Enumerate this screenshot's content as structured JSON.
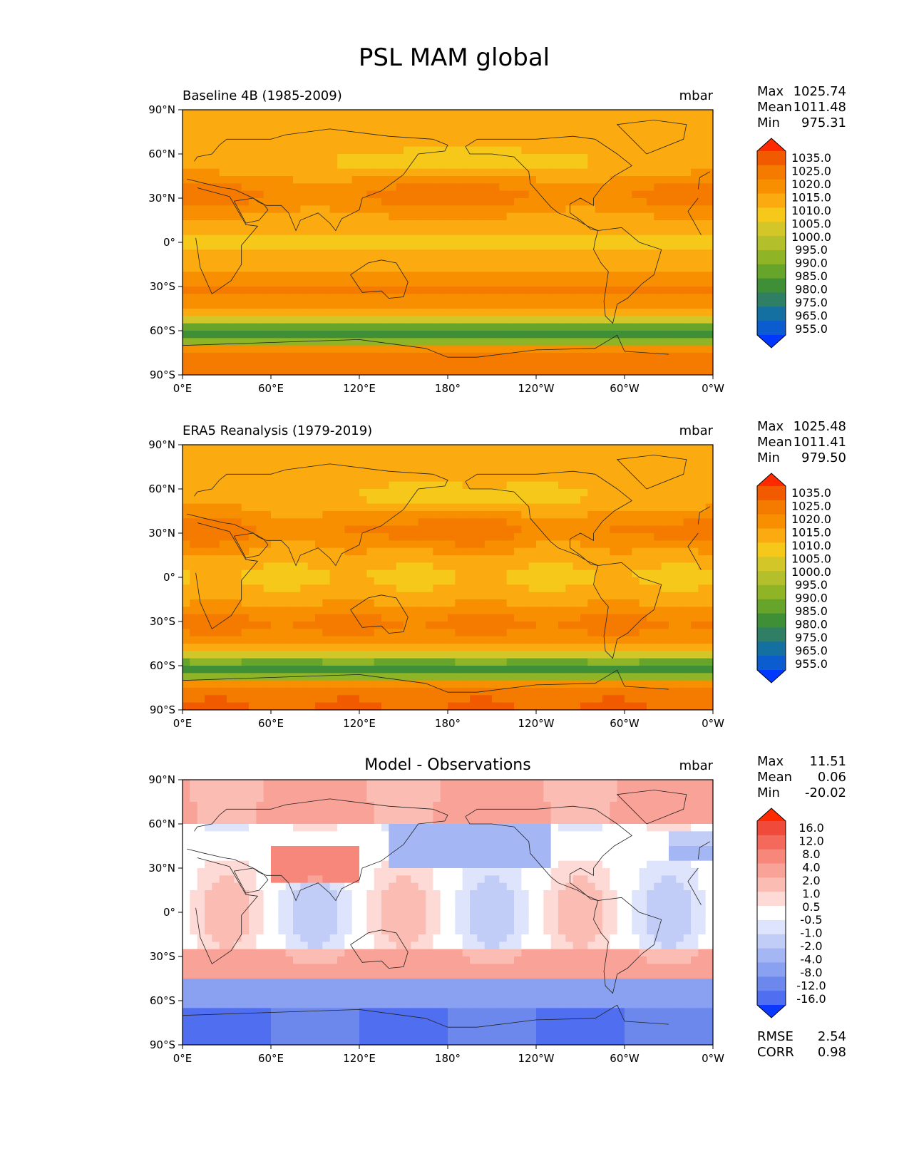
{
  "title": "PSL MAM global",
  "chart_data": [
    {
      "type": "heatmap",
      "title": "Baseline 4B (1985-2009)",
      "units": "mbar",
      "stats": {
        "max_label": "Max",
        "max": "1025.74",
        "mean_label": "Mean",
        "mean": "1011.48",
        "min_label": "Min",
        "min": "975.31"
      },
      "xticks": [
        "0°E",
        "60°E",
        "120°E",
        "180°",
        "120°W",
        "60°W",
        "0°W"
      ],
      "yticks": [
        "90°N",
        "60°N",
        "30°N",
        "0°",
        "30°S",
        "60°S",
        "90°S"
      ],
      "xlim": [
        0,
        360
      ],
      "ylim": [
        -90,
        90
      ],
      "colorbar": {
        "levels": [
          "1035.0",
          "1025.0",
          "1020.0",
          "1015.0",
          "1010.0",
          "1005.0",
          "1000.0",
          "995.0",
          "990.0",
          "985.0",
          "980.0",
          "975.0",
          "965.0",
          "955.0"
        ],
        "colors": [
          "#ff2a00",
          "#f25a00",
          "#f57a00",
          "#f78f00",
          "#fbaa10",
          "#f5c81a",
          "#d2c628",
          "#b3c02c",
          "#8fb526",
          "#66a52a",
          "#3f8f37",
          "#2f7f65",
          "#1470a0",
          "#0a5ccf",
          "#0038ff"
        ]
      }
    },
    {
      "type": "heatmap",
      "title": "ERA5 Reanalysis (1979-2019)",
      "units": "mbar",
      "stats": {
        "max_label": "Max",
        "max": "1025.48",
        "mean_label": "Mean",
        "mean": "1011.41",
        "min_label": "Min",
        "min": "979.50"
      },
      "xticks": [
        "0°E",
        "60°E",
        "120°E",
        "180°",
        "120°W",
        "60°W",
        "0°W"
      ],
      "yticks": [
        "90°N",
        "60°N",
        "30°N",
        "0°",
        "30°S",
        "60°S",
        "90°S"
      ],
      "xlim": [
        0,
        360
      ],
      "ylim": [
        -90,
        90
      ],
      "colorbar": {
        "levels": [
          "1035.0",
          "1025.0",
          "1020.0",
          "1015.0",
          "1010.0",
          "1005.0",
          "1000.0",
          "995.0",
          "990.0",
          "985.0",
          "980.0",
          "975.0",
          "965.0",
          "955.0"
        ],
        "colors": [
          "#ff2a00",
          "#f25a00",
          "#f57a00",
          "#f78f00",
          "#fbaa10",
          "#f5c81a",
          "#d2c628",
          "#b3c02c",
          "#8fb526",
          "#66a52a",
          "#3f8f37",
          "#2f7f65",
          "#1470a0",
          "#0a5ccf",
          "#0038ff"
        ]
      }
    },
    {
      "type": "heatmap",
      "title": "Model - Observations",
      "units": "mbar",
      "stats": {
        "max_label": "Max",
        "max": "11.51",
        "mean_label": "Mean",
        "mean": "0.06",
        "min_label": "Min",
        "min": "-20.02"
      },
      "metrics": {
        "rmse_label": "RMSE",
        "rmse": "2.54",
        "corr_label": "CORR",
        "corr": "0.98"
      },
      "xticks": [
        "0°E",
        "60°E",
        "120°E",
        "180°",
        "120°W",
        "60°W",
        "0°W"
      ],
      "yticks": [
        "90°N",
        "60°N",
        "30°N",
        "0°",
        "30°S",
        "60°S",
        "90°S"
      ],
      "xlim": [
        0,
        360
      ],
      "ylim": [
        -90,
        90
      ],
      "colorbar": {
        "levels": [
          "16.0",
          "12.0",
          "8.0",
          "4.0",
          "2.0",
          "1.0",
          "0.5",
          "-0.5",
          "-1.0",
          "-2.0",
          "-4.0",
          "-8.0",
          "-12.0",
          "-16.0"
        ],
        "colors": [
          "#ff2a00",
          "#f04a3a",
          "#f36a5c",
          "#f7877a",
          "#f9a398",
          "#fbbdb3",
          "#fddad5",
          "#ffffff",
          "#dde4fb",
          "#c1cdf7",
          "#a4b6f3",
          "#8aa0f0",
          "#6d88ec",
          "#4f6ef0",
          "#0a38ff"
        ]
      }
    }
  ]
}
